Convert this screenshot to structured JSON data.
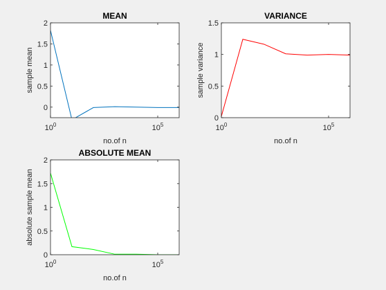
{
  "chart_data": [
    {
      "type": "line",
      "title": "MEAN",
      "xlabel": "no.of n",
      "ylabel": "sample mean",
      "x_scale": "log",
      "x": [
        1,
        10,
        100,
        1000,
        10000,
        100000,
        1000000
      ],
      "values": [
        1.82,
        -0.3,
        -0.01,
        0.01,
        0.0,
        -0.01,
        -0.01
      ],
      "color": "#0072bd",
      "xlim": [
        1,
        1000000
      ],
      "ylim": [
        -0.25,
        2
      ],
      "yticks": [
        0,
        0.5,
        1,
        1.5,
        2
      ],
      "ytick_labels": [
        "0",
        "0.5",
        "1",
        "1.5",
        "2"
      ],
      "xticks": [
        1,
        100000
      ],
      "xtick_labels": [
        {
          "base": "10",
          "exp": "0"
        },
        {
          "base": "10",
          "exp": "5"
        }
      ]
    },
    {
      "type": "line",
      "title": "VARIANCE",
      "xlabel": "no.of n",
      "ylabel": "sample variance",
      "x_scale": "log",
      "x": [
        1,
        10,
        100,
        1000,
        10000,
        100000,
        1000000
      ],
      "values": [
        0.02,
        1.24,
        1.16,
        1.01,
        0.99,
        1.0,
        0.99
      ],
      "color": "#ff0000",
      "xlim": [
        1,
        1000000
      ],
      "ylim": [
        0,
        1.5
      ],
      "yticks": [
        0,
        0.5,
        1,
        1.5
      ],
      "ytick_labels": [
        "0",
        "0.5",
        "1",
        "1.5"
      ],
      "xticks": [
        1,
        100000
      ],
      "xtick_labels": [
        {
          "base": "10",
          "exp": "0"
        },
        {
          "base": "10",
          "exp": "5"
        }
      ]
    },
    {
      "type": "line",
      "title": "ABSOLUTE MEAN",
      "xlabel": "no.of n",
      "ylabel": "absolute sample mean",
      "x_scale": "log",
      "x": [
        1,
        10,
        100,
        1000,
        10000,
        100000,
        1000000
      ],
      "values": [
        1.72,
        0.17,
        0.11,
        0.01,
        0.01,
        0.0,
        0.0
      ],
      "color": "#00ff00",
      "xlim": [
        1,
        1000000
      ],
      "ylim": [
        0,
        2
      ],
      "yticks": [
        0,
        0.5,
        1,
        1.5,
        2
      ],
      "ytick_labels": [
        "0",
        "0.5",
        "1",
        "1.5",
        "2"
      ],
      "xticks": [
        1,
        100000
      ],
      "xtick_labels": [
        {
          "base": "10",
          "exp": "0"
        },
        {
          "base": "10",
          "exp": "5"
        }
      ]
    }
  ]
}
